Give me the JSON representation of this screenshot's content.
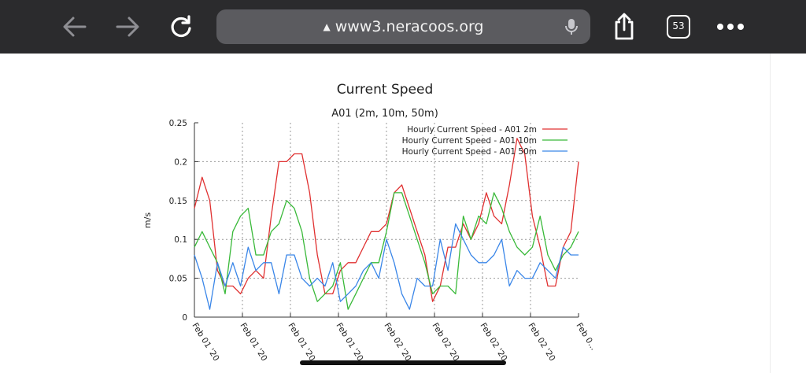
{
  "browser": {
    "back_icon": "arrow-left-icon",
    "forward_icon": "arrow-right-icon",
    "reload_icon": "reload-icon",
    "url": "www3.neracoos.org",
    "lock_icon": "lock-icon",
    "mic_icon": "microphone-icon",
    "share_icon": "share-icon",
    "tab_count": "53",
    "more_icon": "more-dots-icon"
  },
  "chart_data": {
    "type": "line",
    "title": "Current Speed",
    "subtitle": "A01 (2m, 10m, 50m)",
    "ylabel": "m/s",
    "xlabel": "",
    "ylim": [
      0,
      0.25
    ],
    "yticks": [
      "0",
      "0.05",
      "0.1",
      "0.15",
      "0.2",
      "0.25"
    ],
    "xticks": [
      "Feb 01 '20",
      "Feb 01 '20",
      "Feb 01 '20",
      "Feb 01 '20",
      "Feb 02 '20",
      "Feb 02 '20",
      "Feb 02 '20",
      "Feb 02 '20",
      "Feb 0..."
    ],
    "grid": true,
    "legend_position": "top-right",
    "series": [
      {
        "name": "Hourly Current Speed  - A01 2m",
        "color": "#e03030",
        "values": [
          0.14,
          0.18,
          0.15,
          0.06,
          0.04,
          0.04,
          0.03,
          0.05,
          0.06,
          0.05,
          0.13,
          0.2,
          0.2,
          0.21,
          0.21,
          0.16,
          0.08,
          0.03,
          0.03,
          0.06,
          0.07,
          0.07,
          0.09,
          0.11,
          0.11,
          0.12,
          0.16,
          0.17,
          0.14,
          0.11,
          0.08,
          0.02,
          0.04,
          0.09,
          0.09,
          0.12,
          0.1,
          0.12,
          0.16,
          0.13,
          0.12,
          0.17,
          0.23,
          0.21,
          0.13,
          0.09,
          0.04,
          0.04,
          0.09,
          0.11,
          0.2
        ]
      },
      {
        "name": "Hourly Current Speed  - A01 10m",
        "color": "#39b939",
        "values": [
          0.09,
          0.11,
          0.09,
          0.07,
          0.03,
          0.11,
          0.13,
          0.14,
          0.08,
          0.08,
          0.11,
          0.12,
          0.15,
          0.14,
          0.11,
          0.05,
          0.02,
          0.03,
          0.04,
          0.07,
          0.01,
          0.03,
          0.05,
          0.07,
          0.07,
          0.11,
          0.16,
          0.16,
          0.13,
          0.1,
          0.07,
          0.03,
          0.04,
          0.04,
          0.03,
          0.13,
          0.1,
          0.13,
          0.12,
          0.16,
          0.14,
          0.11,
          0.09,
          0.08,
          0.09,
          0.13,
          0.08,
          0.06,
          0.08,
          0.09,
          0.11
        ]
      },
      {
        "name": "Hourly Current Speed  - A01 50m",
        "color": "#3a86e8",
        "values": [
          0.08,
          0.05,
          0.01,
          0.07,
          0.04,
          0.07,
          0.04,
          0.09,
          0.06,
          0.07,
          0.07,
          0.03,
          0.08,
          0.08,
          0.05,
          0.04,
          0.05,
          0.04,
          0.07,
          0.02,
          0.03,
          0.04,
          0.06,
          0.07,
          0.05,
          0.1,
          0.07,
          0.03,
          0.01,
          0.05,
          0.04,
          0.04,
          0.1,
          0.06,
          0.12,
          0.1,
          0.08,
          0.07,
          0.07,
          0.08,
          0.1,
          0.04,
          0.06,
          0.05,
          0.05,
          0.07,
          0.06,
          0.05,
          0.09,
          0.08,
          0.08
        ]
      }
    ]
  }
}
